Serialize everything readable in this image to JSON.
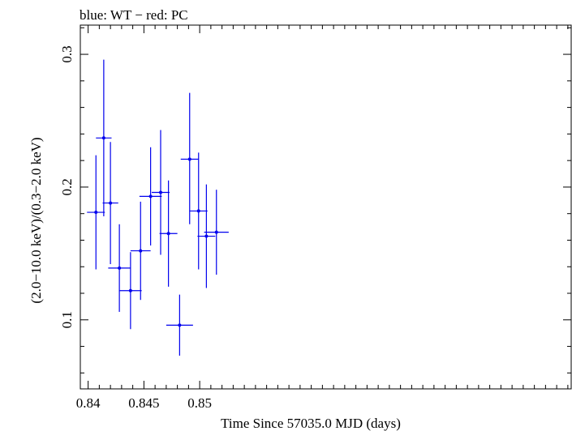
{
  "chart_data": {
    "type": "scatter",
    "title": "blue: WT − red: PC",
    "xlabel": "Time Since 57035.0 MJD (days)",
    "ylabel": "(2.0−10.0 keV)/(0.3−2.0 keV)",
    "xlim": [
      0.8393,
      0.8833
    ],
    "ylim": [
      0.048,
      0.322
    ],
    "xticks": [
      0.84,
      0.845,
      0.85
    ],
    "xtick_labels": [
      "0.84",
      "0.845",
      "0.85"
    ],
    "yticks": [
      0.1,
      0.2,
      0.3
    ],
    "ytick_labels": [
      "0.1",
      "0.2",
      "0.3"
    ],
    "grid": false,
    "series": [
      {
        "name": "WT",
        "color": "#0000ee",
        "points": [
          {
            "x": 0.8407,
            "y": 0.181,
            "xerr": 0.0008,
            "ylo": 0.138,
            "yhi": 0.224
          },
          {
            "x": 0.8414,
            "y": 0.237,
            "xerr": 0.0007,
            "ylo": 0.178,
            "yhi": 0.296
          },
          {
            "x": 0.842,
            "y": 0.188,
            "xerr": 0.0007,
            "ylo": 0.142,
            "yhi": 0.234
          },
          {
            "x": 0.8428,
            "y": 0.139,
            "xerr": 0.001,
            "ylo": 0.106,
            "yhi": 0.172
          },
          {
            "x": 0.8438,
            "y": 0.122,
            "xerr": 0.001,
            "ylo": 0.093,
            "yhi": 0.151
          },
          {
            "x": 0.8447,
            "y": 0.152,
            "xerr": 0.0009,
            "ylo": 0.115,
            "yhi": 0.189
          },
          {
            "x": 0.8456,
            "y": 0.193,
            "xerr": 0.001,
            "ylo": 0.156,
            "yhi": 0.23
          },
          {
            "x": 0.8465,
            "y": 0.196,
            "xerr": 0.0008,
            "ylo": 0.149,
            "yhi": 0.243
          },
          {
            "x": 0.8472,
            "y": 0.165,
            "xerr": 0.0008,
            "ylo": 0.125,
            "yhi": 0.205
          },
          {
            "x": 0.8482,
            "y": 0.096,
            "xerr": 0.0012,
            "ylo": 0.073,
            "yhi": 0.119
          },
          {
            "x": 0.8491,
            "y": 0.221,
            "xerr": 0.0008,
            "ylo": 0.172,
            "yhi": 0.271
          },
          {
            "x": 0.8499,
            "y": 0.182,
            "xerr": 0.0008,
            "ylo": 0.138,
            "yhi": 0.226
          },
          {
            "x": 0.8506,
            "y": 0.163,
            "xerr": 0.0008,
            "ylo": 0.124,
            "yhi": 0.202
          },
          {
            "x": 0.8515,
            "y": 0.166,
            "xerr": 0.0011,
            "ylo": 0.134,
            "yhi": 0.198
          }
        ]
      }
    ]
  }
}
